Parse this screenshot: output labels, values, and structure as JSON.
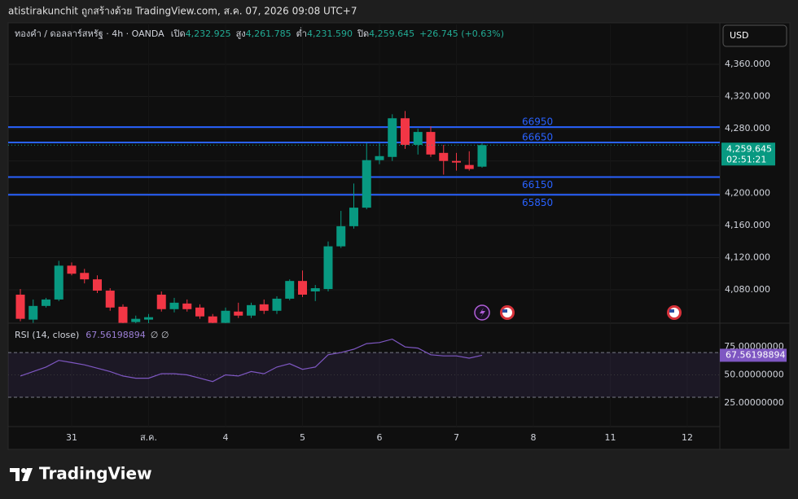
{
  "header": {
    "text": "atistirakunchit ถูกสร้างด้วย TradingView.com, ส.ค. 07, 2026 09:08 UTC+7"
  },
  "currency_button": "USD",
  "footer": {
    "brand": "TradingView"
  },
  "chart_data": [
    {
      "type": "candlestick",
      "symbol": "ทองคำ / ดอลลาร์สหรัฐ · 4h · OANDA",
      "ohlc_legend": [
        {
          "label": "เปิด",
          "value": "4,232.925"
        },
        {
          "label": "สูง",
          "value": "4,261.785"
        },
        {
          "label": "ต่ำ",
          "value": "4,231.590"
        },
        {
          "label": "ปิด",
          "value": "4,259.645"
        }
      ],
      "change": "+26.745 (+0.63%)",
      "up_color": "#089981",
      "down_color": "#f23645",
      "open": [
        4074,
        4043,
        4060,
        4068,
        4110,
        4101,
        4093,
        4079,
        4059,
        4040,
        4043,
        4074,
        4056,
        4063,
        4058,
        4047,
        4039,
        4053,
        4048,
        4062,
        4054,
        4069,
        4091,
        4078,
        4081,
        4134,
        4159,
        4182,
        4241,
        4245,
        4293,
        4260,
        4276,
        4250,
        4240,
        4235,
        4232.925
      ],
      "high": [
        4081,
        4068,
        4070,
        4116,
        4114,
        4106,
        4098,
        4082,
        4062,
        4048,
        4050,
        4078,
        4070,
        4068,
        4062,
        4050,
        4058,
        4064,
        4064,
        4068,
        4072,
        4093,
        4104,
        4086,
        4140,
        4178,
        4212,
        4262,
        4262,
        4298,
        4302,
        4280,
        4283,
        4260,
        4250,
        4252,
        4261.785
      ],
      "low": [
        4041,
        4039,
        4058,
        4066,
        4098,
        4088,
        4076,
        4054,
        4035,
        4036,
        4038,
        4053,
        4052,
        4053,
        4044,
        4036,
        4035,
        4045,
        4045,
        4050,
        4050,
        4067,
        4071,
        4066,
        4078,
        4132,
        4156,
        4180,
        4236,
        4240,
        4255,
        4248,
        4245,
        4223,
        4228,
        4228,
        4231.59
      ],
      "close": [
        4044,
        4060,
        4068,
        4110,
        4100,
        4093,
        4079,
        4058,
        4039,
        4044,
        4046,
        4056,
        4064,
        4056,
        4047,
        4039,
        4054,
        4048,
        4061,
        4054,
        4069,
        4091,
        4074,
        4082,
        4134,
        4159,
        4182,
        4241,
        4246,
        4293,
        4260,
        4276,
        4248,
        4240,
        4238,
        4230,
        4259.645
      ],
      "last_price_label": "4,259.645",
      "countdown": "02:51:21",
      "xlim": [
        -0.952,
        54.54
      ],
      "xticks": [
        {
          "value": 4,
          "label": "31"
        },
        {
          "value": 10,
          "label": "ส.ค."
        },
        {
          "value": 16,
          "label": "4"
        },
        {
          "value": 22,
          "label": "5"
        },
        {
          "value": 28,
          "label": "6"
        },
        {
          "value": 34,
          "label": "7"
        },
        {
          "value": 40,
          "label": "8"
        },
        {
          "value": 46,
          "label": "11"
        },
        {
          "value": 52,
          "label": "12"
        }
      ],
      "ylim": [
        4038.6,
        4409.5
      ],
      "yticks": [
        {
          "value": 4080,
          "label": "4,080.000"
        },
        {
          "value": 4120,
          "label": "4,120.000"
        },
        {
          "value": 4160,
          "label": "4,160.000"
        },
        {
          "value": 4200,
          "label": "4,200.000"
        },
        {
          "value": 4240,
          "label": "4,240.000"
        },
        {
          "value": 4280,
          "label": "4,280.000"
        },
        {
          "value": 4320,
          "label": "4,320.000"
        },
        {
          "value": 4360,
          "label": "4,360.000"
        }
      ],
      "lines": [
        {
          "label": "66950",
          "value": 4282,
          "color": "#2962ff",
          "label_position": "top"
        },
        {
          "label": "66650",
          "value": 4263,
          "color": "#2962ff",
          "label_position": "top"
        },
        {
          "label": "66150",
          "value": 4220,
          "color": "#2962ff",
          "label_position": "bottom"
        },
        {
          "label": "65850",
          "value": 4198,
          "color": "#2962ff",
          "label_position": "bottom"
        }
      ]
    },
    {
      "type": "line",
      "title": "RSI (14, close)",
      "value_label": "67.56198894",
      "extra": "∅ ∅",
      "color": "#7e57c2",
      "values": [
        49,
        53,
        57,
        63,
        61,
        59,
        56,
        53,
        49,
        47,
        47,
        51,
        51,
        50,
        47,
        44,
        50,
        49,
        53,
        51,
        57,
        60,
        55,
        57,
        68,
        70,
        73,
        78,
        79,
        82,
        75,
        74,
        68,
        67,
        67,
        65,
        67.56198894
      ],
      "band": [
        30,
        70
      ],
      "midline": 50,
      "ylim": [
        3.7,
        95.6
      ],
      "yticks": [
        {
          "value": 25,
          "label": "25.00000000"
        },
        {
          "value": 50,
          "label": "50.00000000"
        },
        {
          "value": 75,
          "label": "75.00000000"
        }
      ]
    }
  ]
}
